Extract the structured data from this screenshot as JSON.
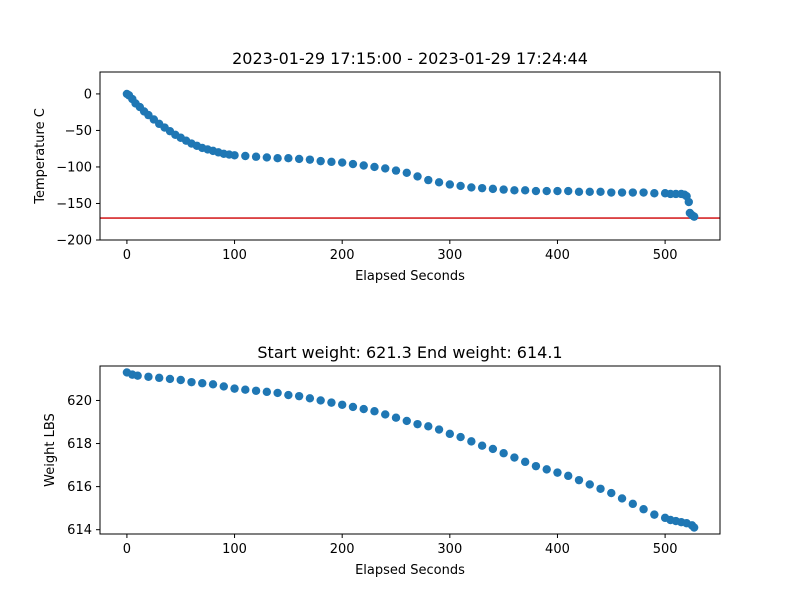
{
  "colors": {
    "points": "#1f77b4",
    "threshold_line": "#d62728",
    "axes": "#000000",
    "background": "#ffffff"
  },
  "chart_data": [
    {
      "type": "scatter",
      "title": "2023-01-29 17:15:00 - 2023-01-29 17:24:44",
      "xlabel": "Elapsed Seconds",
      "ylabel": "Temperature C",
      "xlim": [
        -25,
        551
      ],
      "ylim": [
        -200,
        30
      ],
      "xticks": [
        0,
        100,
        200,
        300,
        400,
        500
      ],
      "yticks": [
        0,
        -50,
        -100,
        -150,
        -200
      ],
      "grid": false,
      "hline": {
        "y": -170,
        "color": "#d62728"
      },
      "x": [
        0,
        2,
        5,
        8,
        12,
        16,
        20,
        25,
        30,
        35,
        40,
        45,
        50,
        55,
        60,
        65,
        70,
        75,
        80,
        85,
        90,
        95,
        100,
        110,
        120,
        130,
        140,
        150,
        160,
        170,
        180,
        190,
        200,
        210,
        220,
        230,
        240,
        250,
        260,
        270,
        280,
        290,
        300,
        310,
        320,
        330,
        340,
        350,
        360,
        370,
        380,
        390,
        400,
        410,
        420,
        430,
        440,
        450,
        460,
        470,
        480,
        490,
        500,
        505,
        510,
        515,
        518,
        520,
        522,
        523,
        525,
        527
      ],
      "y": [
        0,
        -2,
        -7,
        -13,
        -18,
        -24,
        -29,
        -35,
        -41,
        -46,
        -51,
        -56,
        -60,
        -64,
        -68,
        -71,
        -74,
        -76,
        -78,
        -80,
        -82,
        -83,
        -84,
        -85,
        -86,
        -87,
        -88,
        -88,
        -89,
        -90,
        -92,
        -93,
        -94,
        -96,
        -98,
        -100,
        -102,
        -105,
        -108,
        -113,
        -118,
        -121,
        -124,
        -126,
        -128,
        -129,
        -130,
        -131,
        -132,
        -132,
        -133,
        -133,
        -133,
        -133,
        -134,
        -134,
        -134,
        -135,
        -135,
        -135,
        -135,
        -136,
        -136,
        -137,
        -137,
        -137,
        -138,
        -140,
        -148,
        -163,
        -166,
        -168
      ]
    },
    {
      "type": "scatter",
      "title": "Start weight: 621.3 End weight: 614.1",
      "xlabel": "Elapsed Seconds",
      "ylabel": "Weight LBS",
      "xlim": [
        -25,
        551
      ],
      "ylim": [
        613.8,
        621.6
      ],
      "xticks": [
        0,
        100,
        200,
        300,
        400,
        500
      ],
      "yticks": [
        614,
        616,
        618,
        620
      ],
      "grid": false,
      "x": [
        0,
        5,
        10,
        20,
        30,
        40,
        50,
        60,
        70,
        80,
        90,
        100,
        110,
        120,
        130,
        140,
        150,
        160,
        170,
        180,
        190,
        200,
        210,
        220,
        230,
        240,
        250,
        260,
        270,
        280,
        290,
        300,
        310,
        320,
        330,
        340,
        350,
        360,
        370,
        380,
        390,
        400,
        410,
        420,
        430,
        440,
        450,
        460,
        470,
        480,
        490,
        500,
        505,
        510,
        515,
        520,
        525,
        527
      ],
      "y": [
        621.3,
        621.2,
        621.15,
        621.1,
        621.05,
        621.0,
        620.95,
        620.85,
        620.8,
        620.75,
        620.65,
        620.55,
        620.5,
        620.45,
        620.4,
        620.35,
        620.25,
        620.2,
        620.1,
        620.0,
        619.9,
        619.8,
        619.7,
        619.6,
        619.5,
        619.35,
        619.2,
        619.05,
        618.9,
        618.8,
        618.65,
        618.45,
        618.3,
        618.1,
        617.9,
        617.75,
        617.55,
        617.35,
        617.15,
        616.95,
        616.8,
        616.65,
        616.5,
        616.3,
        616.1,
        615.9,
        615.7,
        615.45,
        615.2,
        614.95,
        614.7,
        614.55,
        614.45,
        614.4,
        614.35,
        614.3,
        614.2,
        614.1
      ]
    }
  ]
}
